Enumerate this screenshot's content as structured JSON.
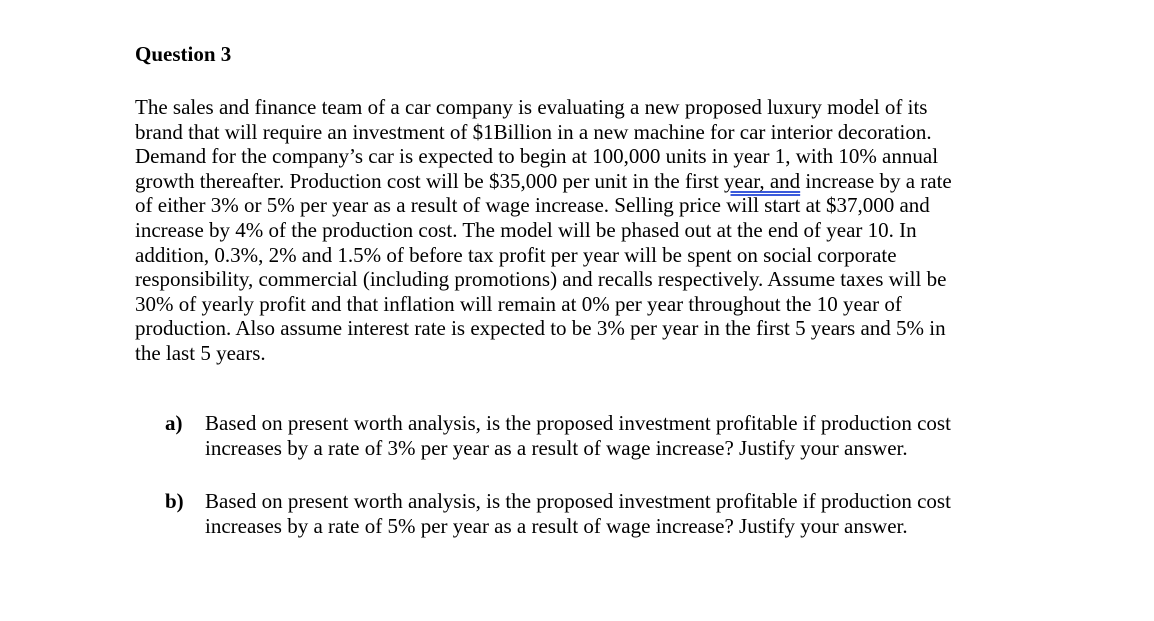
{
  "title": "Question 3",
  "paragraph": {
    "lines": [
      "The sales and finance team of a car company is evaluating a new proposed luxury model of its",
      "brand that will require an investment of $1Billion in a new machine for car interior decoration.",
      "Demand for the company’s car is expected to begin at 100,000 units in year 1, with 10% annual",
      "",
      "of either 3% or 5% per year as a result of wage increase. Selling price will start at $37,000 and",
      "increase by 4% of the production cost. The model will be phased out at the end of year 10. In",
      "addition, 0.3%, 2% and 1.5% of before tax profit per year will be spent on social corporate",
      "responsibility, commercial (including promotions) and recalls respectively. Assume taxes will be",
      "30% of yearly profit and that inflation will remain at 0% per year throughout the 10 year of",
      "production. Also assume interest rate is expected to be 3% per year in the first 5 years and 5% in",
      "the last 5 years."
    ],
    "line4_before": "growth thereafter. Production cost will be $35,000 per unit in the first ",
    "line4_flagged": "year, and",
    "line4_after": " increase by a rate"
  },
  "questions": [
    {
      "label": "a)",
      "lines": [
        "Based on present worth analysis, is the proposed investment profitable if production cost",
        "increases by a rate of 3% per year as a result of wage increase? Justify your answer."
      ]
    },
    {
      "label": "b)",
      "lines": [
        "Based on present worth analysis, is the proposed investment profitable if production cost",
        "increases by a rate of 5% per year as a result of wage increase? Justify your answer."
      ]
    }
  ]
}
